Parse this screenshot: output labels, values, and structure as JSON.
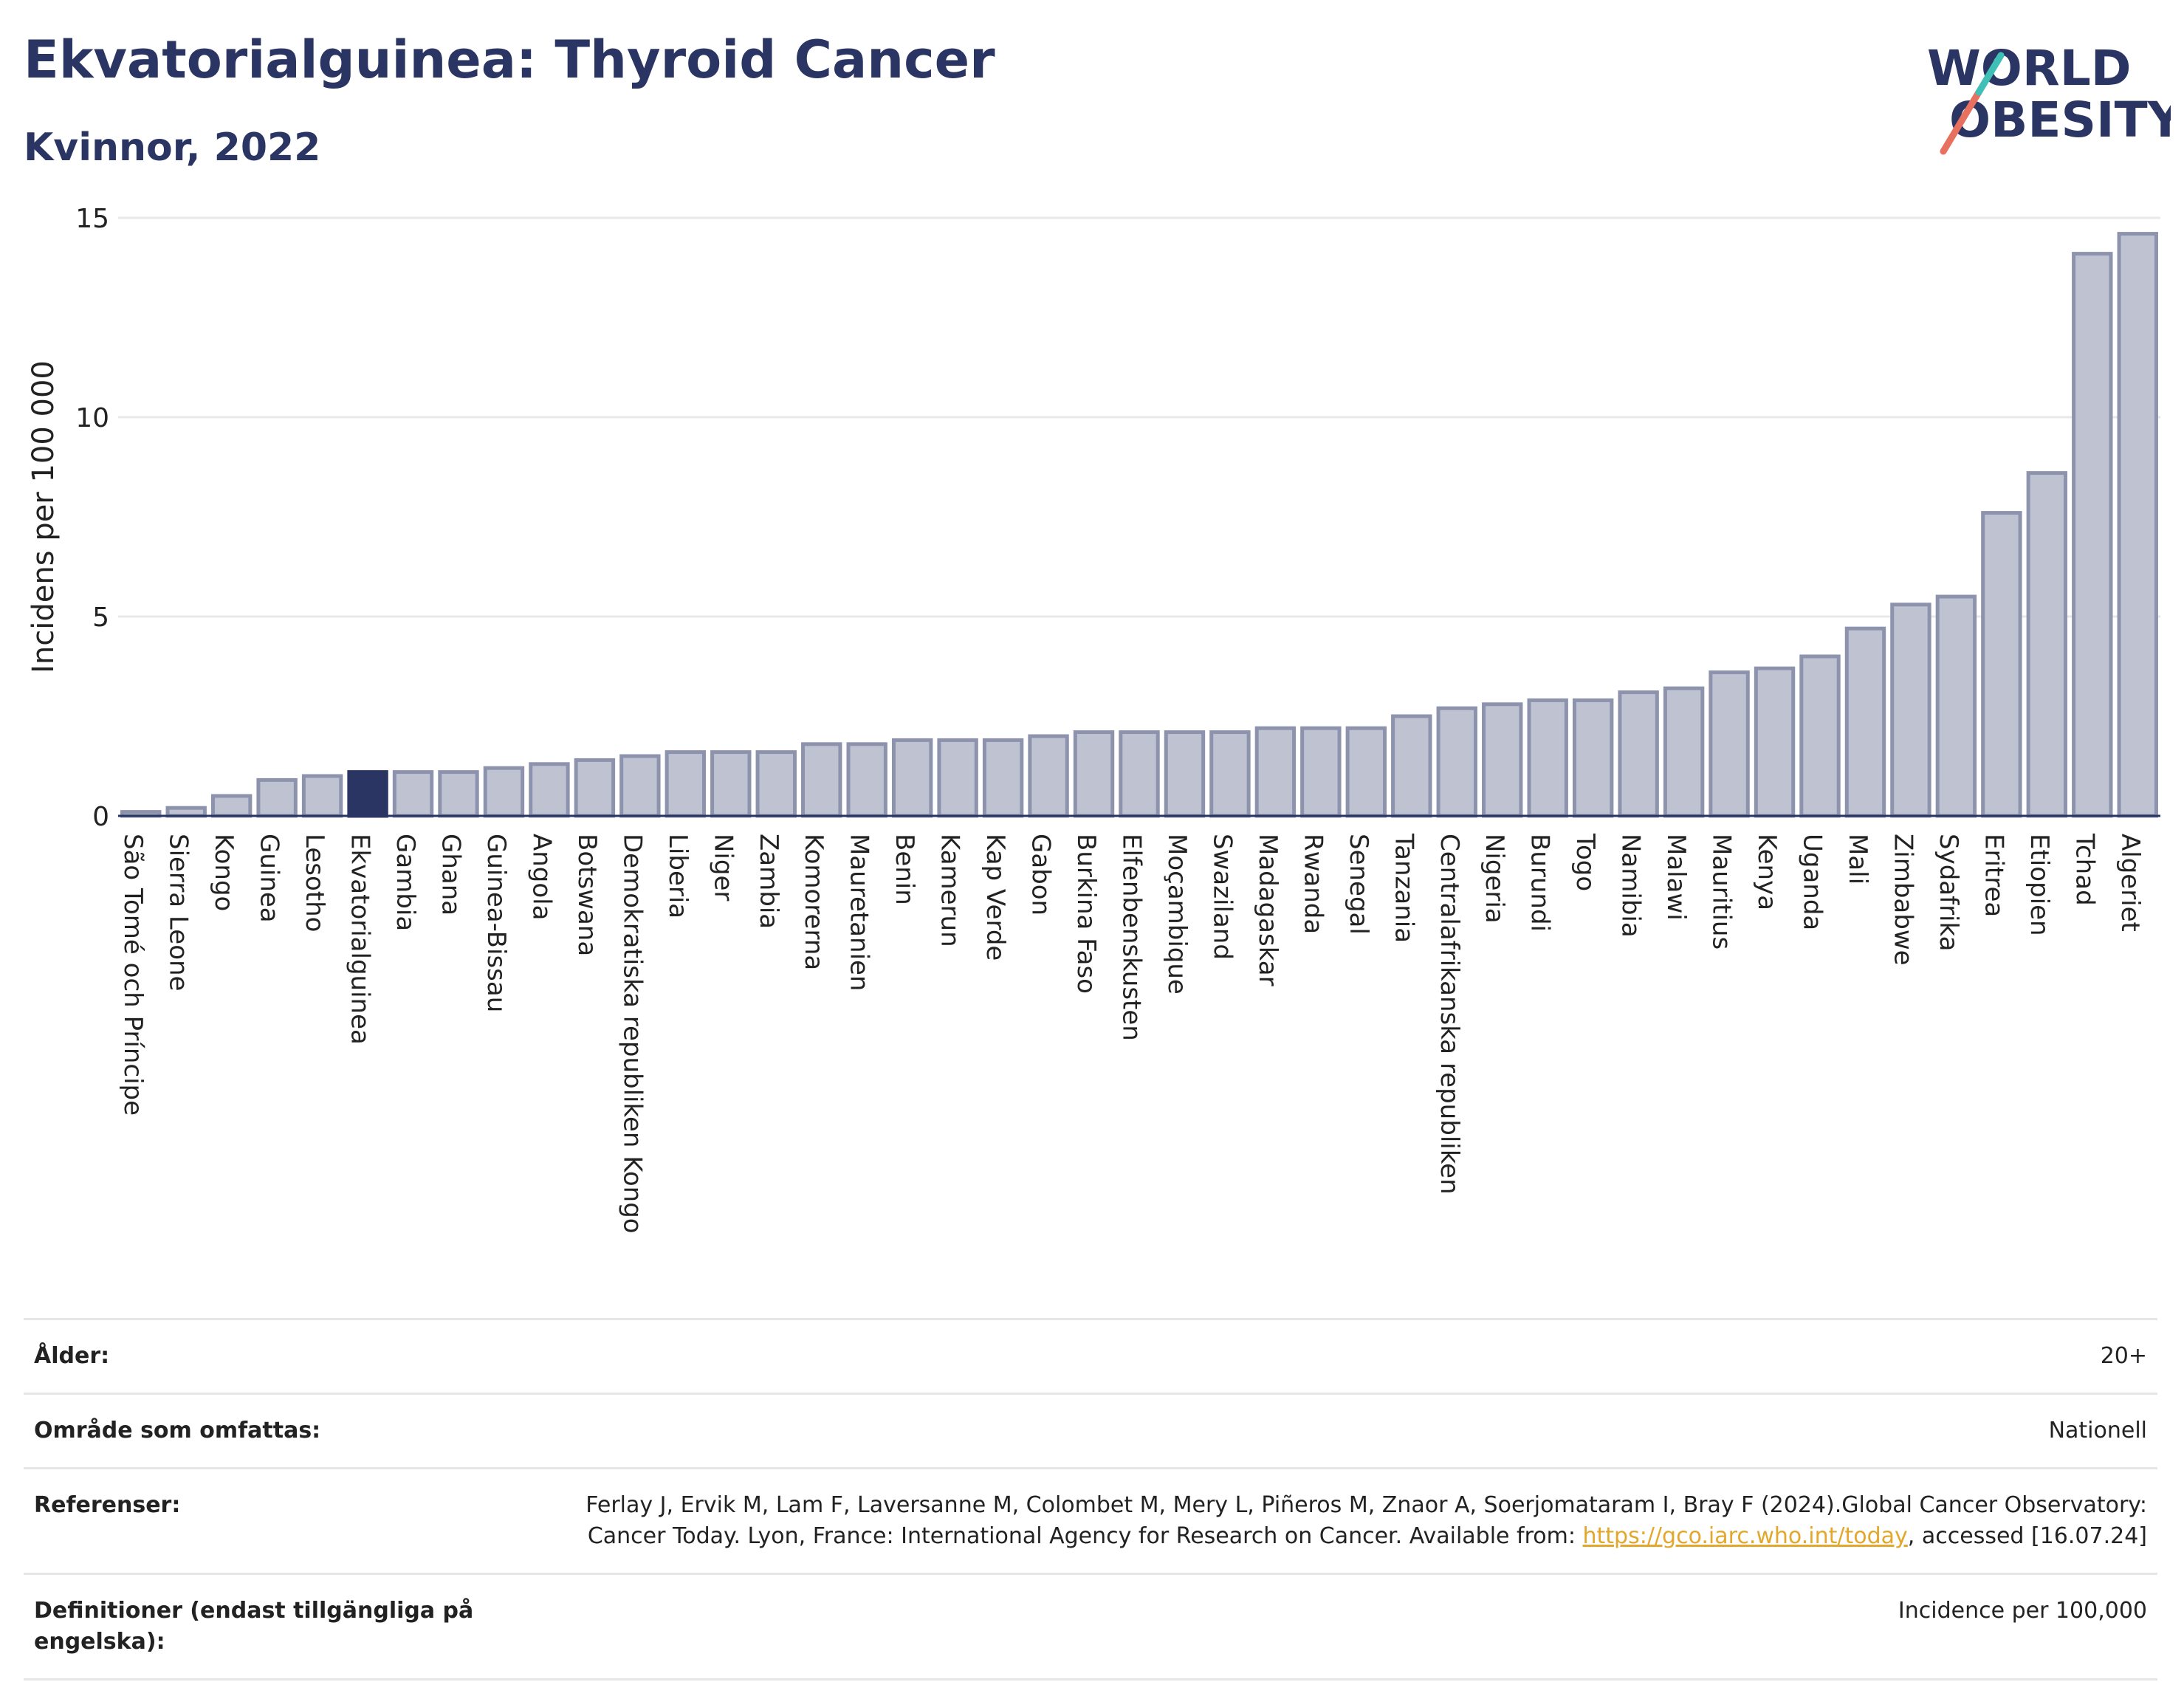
{
  "header": {
    "title": "Ekvatorialguinea: Thyroid Cancer",
    "subtitle": "Kvinnor, 2022"
  },
  "logo": {
    "line1": "WORLD",
    "line2": "OBESITY"
  },
  "colors": {
    "bar": "#bfc3d1",
    "bar_stroke": "#8d93ad",
    "highlight": "#2a3563",
    "title": "#2a3563",
    "link": "#e3a82b"
  },
  "chart_data": {
    "type": "bar",
    "title": "Ekvatorialguinea: Thyroid Cancer",
    "subtitle": "Kvinnor, 2022",
    "ylabel": "Incidens per 100 000",
    "xlabel": "",
    "ylim": [
      0,
      15
    ],
    "yticks": [
      0,
      5,
      10,
      15
    ],
    "grid": true,
    "highlight": "Ekvatorialguinea",
    "categories": [
      "São Tomé och Príncipe",
      "Sierra Leone",
      "Kongo",
      "Guinea",
      "Lesotho",
      "Ekvatorialguinea",
      "Gambia",
      "Ghana",
      "Guinea-Bissau",
      "Angola",
      "Botswana",
      "Demokratiska republiken Kongo",
      "Liberia",
      "Niger",
      "Zambia",
      "Komorerna",
      "Mauretanien",
      "Benin",
      "Kamerun",
      "Kap Verde",
      "Gabon",
      "Burkina Faso",
      "Elfenbenskusten",
      "Moçambique",
      "Swaziland",
      "Madagaskar",
      "Rwanda",
      "Senegal",
      "Tanzania",
      "Centralafrikanska republiken",
      "Nigeria",
      "Burundi",
      "Togo",
      "Namibia",
      "Malawi",
      "Mauritius",
      "Kenya",
      "Uganda",
      "Mali",
      "Zimbabwe",
      "Sydafrika",
      "Eritrea",
      "Etiopien",
      "Tchad",
      "Algeriet"
    ],
    "values": [
      0.1,
      0.2,
      0.5,
      0.9,
      1.0,
      1.1,
      1.1,
      1.1,
      1.2,
      1.3,
      1.4,
      1.5,
      1.6,
      1.6,
      1.6,
      1.8,
      1.8,
      1.9,
      1.9,
      1.9,
      2.0,
      2.1,
      2.1,
      2.1,
      2.1,
      2.2,
      2.2,
      2.2,
      2.5,
      2.7,
      2.8,
      2.9,
      2.9,
      3.1,
      3.2,
      3.6,
      3.7,
      4.0,
      4.7,
      5.3,
      5.5,
      7.6,
      8.6,
      14.1,
      14.6
    ]
  },
  "info": [
    {
      "key": "Ålder:",
      "value": "20+"
    },
    {
      "key": "Område som omfattas:",
      "value": "Nationell"
    },
    {
      "key": "Referenser:",
      "value": "Ferlay J, Ervik M, Lam F, Laversanne M, Colombet M, Mery L, Piñeros M, Znaor A, Soerjomataram I, Bray F (2024).Global Cancer Observatory: Cancer Today. Lyon, France: International Agency for Research on Cancer. Available from: ",
      "link": "https://gco.iarc.who.int/today",
      "suffix": ", accessed [16.07.24]"
    },
    {
      "key": "Definitioner (endast tillgängliga på engelska):",
      "value": "Incidence per 100,000"
    }
  ]
}
